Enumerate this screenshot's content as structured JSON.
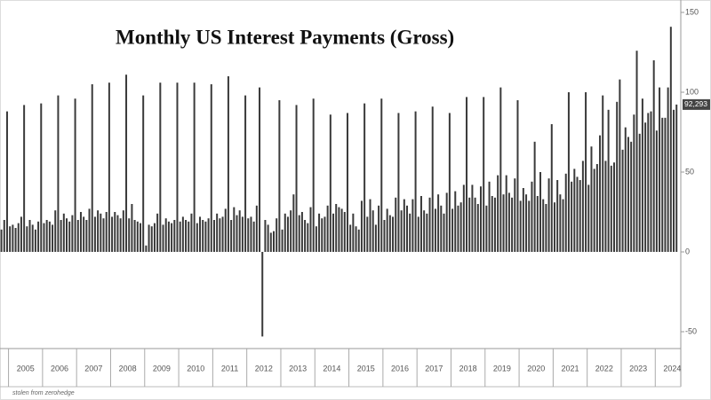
{
  "chart_data": {
    "type": "bar",
    "title": "Monthly US Interest Payments (Gross)",
    "source": "stolen from zerohedge",
    "categories": [
      null,
      null,
      null,
      null,
      null,
      null,
      null,
      null,
      "2005",
      null,
      null,
      null,
      null,
      null,
      null,
      null,
      null,
      null,
      null,
      null,
      "2006",
      null,
      null,
      null,
      null,
      null,
      null,
      null,
      null,
      null,
      null,
      null,
      "2007",
      null,
      null,
      null,
      null,
      null,
      null,
      null,
      null,
      null,
      null,
      null,
      "2008",
      null,
      null,
      null,
      null,
      null,
      null,
      null,
      null,
      null,
      null,
      null,
      "2009",
      null,
      null,
      null,
      null,
      null,
      null,
      null,
      null,
      null,
      null,
      null,
      "2010",
      null,
      null,
      null,
      null,
      null,
      null,
      null,
      null,
      null,
      null,
      null,
      "2011",
      null,
      null,
      null,
      null,
      null,
      null,
      null,
      null,
      null,
      null,
      null,
      "2012",
      null,
      null,
      null,
      null,
      null,
      null,
      null,
      null,
      null,
      null,
      null,
      "2013",
      null,
      null,
      null,
      null,
      null,
      null,
      null,
      null,
      null,
      null,
      null,
      "2014",
      null,
      null,
      null,
      null,
      null,
      null,
      null,
      null,
      null,
      null,
      null,
      "2015",
      null,
      null,
      null,
      null,
      null,
      null,
      null,
      null,
      null,
      null,
      null,
      "2016",
      null,
      null,
      null,
      null,
      null,
      null,
      null,
      null,
      null,
      null,
      null,
      "2017",
      null,
      null,
      null,
      null,
      null,
      null,
      null,
      null,
      null,
      null,
      null,
      "2018",
      null,
      null,
      null,
      null,
      null,
      null,
      null,
      null,
      null,
      null,
      null,
      "2019",
      null,
      null,
      null,
      null,
      null,
      null,
      null,
      null,
      null,
      null,
      null,
      "2020",
      null,
      null,
      null,
      null,
      null,
      null,
      null,
      null,
      null,
      null,
      null,
      "2021",
      null,
      null,
      null,
      null,
      null,
      null,
      null,
      null,
      null,
      null,
      null,
      "2022",
      null,
      null,
      null,
      null,
      null,
      null,
      null,
      null,
      null,
      null,
      null,
      "2023",
      null,
      null,
      null,
      null,
      null,
      null,
      null,
      null,
      null,
      null,
      null,
      "2024",
      null,
      null
    ],
    "values": [
      14,
      20,
      88,
      16,
      17,
      15,
      18,
      22,
      92,
      16,
      20,
      17,
      14,
      19,
      93,
      18,
      20,
      19,
      17,
      26,
      98,
      20,
      24,
      21,
      19,
      23,
      96,
      20,
      25,
      22,
      20,
      27,
      105,
      22,
      26,
      24,
      21,
      25,
      106,
      22,
      25,
      23,
      21,
      26,
      111,
      21,
      30,
      20,
      19,
      18,
      98,
      4,
      17,
      16,
      18,
      24,
      106,
      17,
      21,
      19,
      18,
      20,
      106,
      19,
      22,
      20,
      19,
      24,
      106,
      18,
      22,
      20,
      19,
      21,
      105,
      20,
      24,
      21,
      22,
      27,
      110,
      20,
      28,
      23,
      26,
      22,
      98,
      21,
      22,
      19,
      29,
      103,
      -53,
      20,
      17,
      12,
      13,
      21,
      95,
      14,
      24,
      22,
      26,
      36,
      92,
      23,
      25,
      20,
      18,
      28,
      96,
      16,
      24,
      21,
      22,
      29,
      86,
      24,
      30,
      28,
      27,
      25,
      87,
      17,
      24,
      16,
      14,
      32,
      93,
      22,
      33,
      26,
      17,
      29,
      96,
      20,
      27,
      23,
      22,
      34,
      87,
      26,
      33,
      29,
      24,
      33,
      88,
      22,
      35,
      26,
      24,
      34,
      91,
      27,
      36,
      29,
      24,
      37,
      87,
      27,
      38,
      29,
      31,
      42,
      97,
      34,
      42,
      34,
      30,
      41,
      97,
      29,
      44,
      35,
      34,
      48,
      103,
      36,
      48,
      37,
      34,
      46,
      95,
      32,
      40,
      36,
      32,
      44,
      69,
      35,
      50,
      33,
      30,
      46,
      80,
      31,
      45,
      36,
      33,
      49,
      100,
      44,
      52,
      47,
      45,
      57,
      100,
      42,
      66,
      52,
      55,
      73,
      98,
      57,
      89,
      54,
      56,
      94,
      108,
      64,
      78,
      72,
      69,
      86,
      126,
      74,
      96,
      81,
      87,
      88,
      120,
      76,
      103,
      84,
      84,
      103,
      141,
      89,
      92.293
    ],
    "last_value_label": "92,293",
    "color": "#3a3a3a",
    "ylim": [
      -60,
      155
    ],
    "yticks": [
      -50,
      0,
      50,
      100,
      150
    ]
  }
}
